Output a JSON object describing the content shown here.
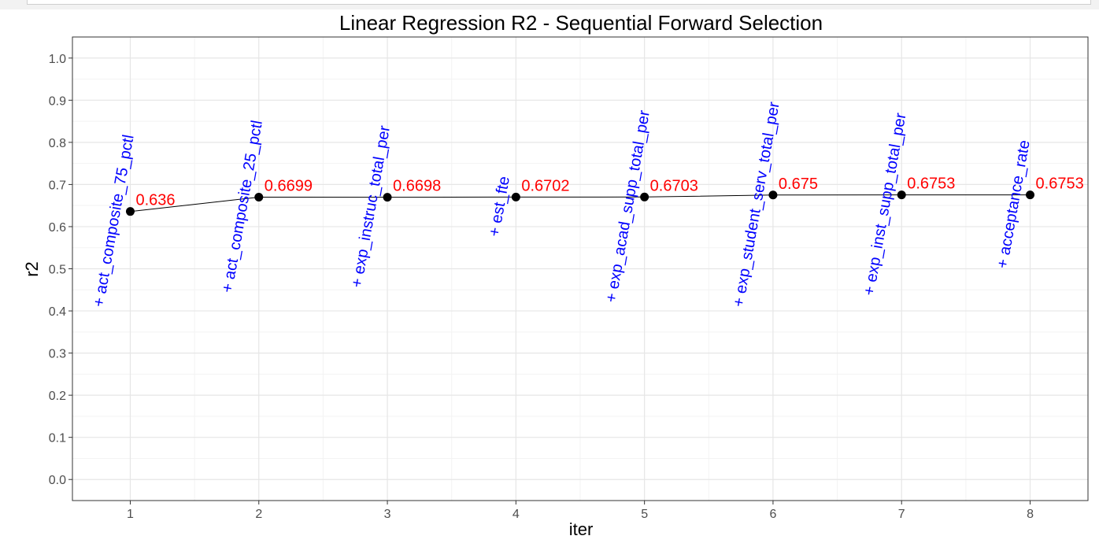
{
  "chart_data": {
    "type": "line",
    "title": "Linear Regression R2 - Sequential Forward Selection",
    "xlabel": "iter",
    "ylabel": "r2",
    "xlim": [
      0.55,
      8.45
    ],
    "ylim": [
      -0.05,
      1.05
    ],
    "x_ticks": [
      1,
      2,
      3,
      4,
      5,
      6,
      7,
      8
    ],
    "y_ticks": [
      0.0,
      0.1,
      0.2,
      0.3,
      0.4,
      0.5,
      0.6,
      0.7,
      0.8,
      0.9,
      1.0
    ],
    "y_tick_labels": [
      "0.0",
      "0.1",
      "0.2",
      "0.3",
      "0.4",
      "0.5",
      "0.6",
      "0.7",
      "0.8",
      "0.9",
      "1.0"
    ],
    "grid": true,
    "series": [
      {
        "x": [
          1,
          2,
          3,
          4,
          5,
          6,
          7,
          8
        ],
        "y": [
          0.636,
          0.6699,
          0.6698,
          0.6702,
          0.6703,
          0.675,
          0.6753,
          0.6753
        ],
        "value_labels": [
          "0.636",
          "0.6699",
          "0.6698",
          "0.6702",
          "0.6703",
          "0.675",
          "0.6753",
          "0.6753"
        ],
        "feature_labels": [
          "+ act_composite_75_pctl",
          "+ act_composite_25_pctl",
          "+ exp_instruc_total_per",
          "+ est_fte",
          "+ exp_acad_supp_total_per",
          "+ exp_student_serv_total_per",
          "+ exp_inst_supp_total_per",
          "+ acceptance_rate"
        ]
      }
    ],
    "colors": {
      "line": "#000000",
      "point": "#000000",
      "value_label": "#ff0000",
      "feature_label": "#0000ff",
      "grid_major": "#e6e6e6",
      "grid_minor": "#f3f3f3",
      "panel_border": "#333333",
      "axis_text": "#4d4d4d"
    }
  }
}
